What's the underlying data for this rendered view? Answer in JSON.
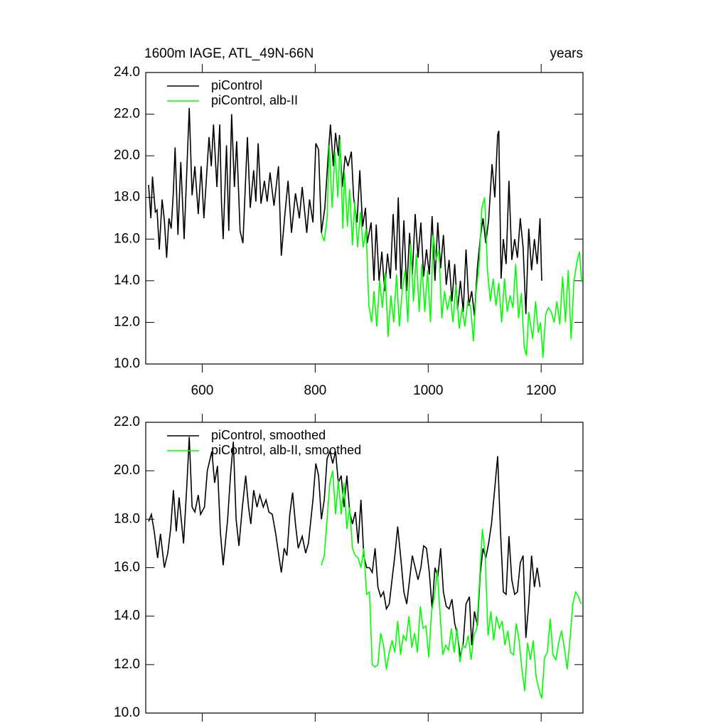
{
  "chart_data": [
    {
      "type": "line",
      "title": "1600m IAGE, ATL_49N-66N",
      "right_string": "years",
      "xlim": [
        500,
        1274
      ],
      "xticks": [
        600,
        800,
        1000,
        1200
      ],
      "ylim": [
        10,
        24
      ],
      "yticks": [
        {
          "value": 10,
          "label": "10.0"
        },
        {
          "value": 12,
          "label": "12.0"
        },
        {
          "value": 14,
          "label": "14.0"
        },
        {
          "value": 16,
          "label": "16.0"
        },
        {
          "value": 18,
          "label": "18.0"
        },
        {
          "value": 20,
          "label": "20.0"
        },
        {
          "value": 22,
          "label": "22.0"
        },
        {
          "value": 24,
          "label": "24.0"
        }
      ],
      "legend": "top-left",
      "series": [
        {
          "name": "piControl",
          "color": "#000000",
          "x": [
            505,
            509,
            512,
            517,
            520,
            524,
            529,
            533,
            537,
            541,
            545,
            549,
            552,
            557,
            562,
            568,
            577,
            582,
            587,
            593,
            598,
            603,
            612,
            616,
            620,
            626,
            631,
            634,
            637,
            643,
            647,
            652,
            657,
            661,
            667,
            672,
            680,
            685,
            691,
            695,
            699,
            704,
            710,
            715,
            720,
            727,
            735,
            740,
            746,
            752,
            758,
            765,
            772,
            777,
            785,
            790,
            796,
            801,
            806,
            811,
            817,
            823,
            827,
            832,
            836,
            841,
            843,
            848,
            853,
            858,
            864,
            868,
            874,
            879,
            884,
            889,
            892,
            899,
            904,
            908,
            913,
            918,
            923,
            928,
            933,
            938,
            943,
            947,
            952,
            957,
            962,
            967,
            972,
            977,
            982,
            987,
            992,
            997,
            1002,
            1007,
            1012,
            1017,
            1022,
            1027,
            1032,
            1037,
            1042,
            1047,
            1052,
            1057,
            1062,
            1067,
            1072,
            1077,
            1082,
            1087,
            1092,
            1097,
            1102,
            1107,
            1113,
            1118,
            1123,
            1125,
            1129,
            1133,
            1138,
            1143,
            1148,
            1153,
            1158,
            1163,
            1168,
            1173,
            1178,
            1183,
            1188,
            1193,
            1198,
            1201
          ],
          "values": [
            18.6,
            17.0,
            19.0,
            17.3,
            17.4,
            15.5,
            17.9,
            16.9,
            15.1,
            17.0,
            16.5,
            18.3,
            20.4,
            16.2,
            19.7,
            16.0,
            22.3,
            18.1,
            19.5,
            17.2,
            19.5,
            17.0,
            20.9,
            19.5,
            21.5,
            18.5,
            21.5,
            17.8,
            16.0,
            20.5,
            16.4,
            22.0,
            18.5,
            20.7,
            16.4,
            15.8,
            20.9,
            17.5,
            19.3,
            17.8,
            20.6,
            17.7,
            18.8,
            17.8,
            19.2,
            17.6,
            19.5,
            15.2,
            17.1,
            18.8,
            16.3,
            18.2,
            17.0,
            18.5,
            16.3,
            17.9,
            16.8,
            20.6,
            20.3,
            16.3,
            17.5,
            20.0,
            21.5,
            19.5,
            21.1,
            20.0,
            21.0,
            18.5,
            20.0,
            19.5,
            20.2,
            18.0,
            16.8,
            19.3,
            16.6,
            17.5,
            15.8,
            16.8,
            14.0,
            16.7,
            14.0,
            15.4,
            13.5,
            15.3,
            14.1,
            17.2,
            14.5,
            18.0,
            13.6,
            16.9,
            13.5,
            16.3,
            14.3,
            17.2,
            15.1,
            16.8,
            14.2,
            15.5,
            14.3,
            17.1,
            14.0,
            16.8,
            14.6,
            16.2,
            13.8,
            15.0,
            13.0,
            14.8,
            12.6,
            14.0,
            12.5,
            15.5,
            12.8,
            13.5,
            12.3,
            14.6,
            16.0,
            17.0,
            15.8,
            16.9,
            19.6,
            18.0,
            21.0,
            21.2,
            14.1,
            16.0,
            14.8,
            18.8,
            15.0,
            16.0,
            15.1,
            17.0,
            15.6,
            12.4,
            16.5,
            14.5,
            16.0,
            14.8,
            17.0,
            14.0
          ]
        },
        {
          "name": "piControl, alb-II",
          "color": "#00ff00",
          "x": [
            811,
            816,
            821,
            825,
            830,
            835,
            840,
            844,
            849,
            852,
            857,
            861,
            866,
            870,
            875,
            880,
            885,
            890,
            895,
            900,
            904,
            909,
            914,
            919,
            924,
            929,
            934,
            939,
            944,
            949,
            954,
            959,
            964,
            969,
            974,
            979,
            984,
            989,
            994,
            999,
            1004,
            1009,
            1014,
            1019,
            1024,
            1029,
            1034,
            1039,
            1044,
            1049,
            1055,
            1060,
            1065,
            1070,
            1075,
            1080,
            1085,
            1090,
            1095,
            1100,
            1105,
            1110,
            1115,
            1120,
            1125,
            1130,
            1135,
            1140,
            1145,
            1150,
            1155,
            1160,
            1165,
            1170,
            1174,
            1178,
            1185,
            1190,
            1195,
            1199,
            1203,
            1208,
            1213,
            1218,
            1223,
            1228,
            1233,
            1238,
            1243,
            1248,
            1253,
            1258,
            1264,
            1268,
            1271,
            1273
          ],
          "values": [
            16.3,
            15.9,
            17.0,
            20.5,
            17.5,
            20.2,
            18.0,
            20.8,
            16.5,
            19.2,
            16.6,
            18.4,
            15.7,
            17.8,
            15.6,
            17.3,
            15.6,
            16.5,
            12.8,
            12.0,
            13.5,
            11.8,
            14.0,
            12.7,
            14.4,
            11.3,
            13.3,
            12.0,
            14.3,
            11.8,
            13.5,
            14.5,
            12.0,
            15.8,
            13.0,
            15.3,
            12.5,
            14.8,
            12.5,
            14.5,
            12.0,
            16.2,
            15.0,
            15.5,
            12.2,
            13.5,
            12.6,
            13.3,
            12.0,
            13.8,
            11.7,
            12.7,
            11.8,
            13.0,
            12.8,
            11.1,
            13.5,
            14.7,
            17.5,
            18.0,
            14.5,
            13.0,
            14.1,
            12.8,
            13.9,
            12.0,
            14.1,
            12.5,
            13.3,
            12.7,
            14.8,
            12.2,
            13.4,
            10.8,
            10.4,
            12.5,
            11.2,
            13.0,
            11.5,
            12.0,
            10.3,
            12.4,
            12.7,
            12.5,
            12.0,
            13.0,
            11.9,
            14.2,
            12.0,
            14.5,
            11.2,
            14.0,
            15.0,
            15.4,
            14.2,
            13.9
          ]
        }
      ]
    },
    {
      "type": "line",
      "xlim": [
        500,
        1274
      ],
      "ylim": [
        10,
        22
      ],
      "yticks": [
        {
          "value": 10,
          "label": "10.0"
        },
        {
          "value": 12,
          "label": "12.0"
        },
        {
          "value": 14,
          "label": "14.0"
        },
        {
          "value": 16,
          "label": "16.0"
        },
        {
          "value": 18,
          "label": "18.0"
        },
        {
          "value": 20,
          "label": "20.0"
        },
        {
          "value": 22,
          "label": "22.0"
        }
      ],
      "legend": "top-left",
      "series": [
        {
          "name": "piControl, smoothed",
          "color": "#000000",
          "x": [
            505,
            510,
            515,
            521,
            526,
            533,
            539,
            544,
            549,
            554,
            559,
            567,
            573,
            577,
            582,
            587,
            593,
            597,
            604,
            609,
            617,
            622,
            627,
            632,
            637,
            645,
            650,
            655,
            660,
            665,
            671,
            677,
            682,
            686,
            691,
            697,
            702,
            708,
            713,
            718,
            724,
            730,
            735,
            740,
            745,
            750,
            755,
            760,
            765,
            770,
            777,
            783,
            788,
            796,
            801,
            806,
            811,
            816,
            821,
            826,
            831,
            836,
            841,
            846,
            851,
            856,
            861,
            866,
            871,
            876,
            881,
            886,
            891,
            896,
            901,
            906,
            911,
            916,
            921,
            926,
            931,
            936,
            941,
            946,
            951,
            957,
            962,
            967,
            972,
            977,
            982,
            987,
            992,
            997,
            1002,
            1007,
            1012,
            1017,
            1022,
            1027,
            1032,
            1037,
            1042,
            1047,
            1052,
            1057,
            1062,
            1067,
            1073,
            1077,
            1082,
            1087,
            1092,
            1097,
            1102,
            1107,
            1112,
            1118,
            1123,
            1128,
            1133,
            1138,
            1143,
            1148,
            1153,
            1158,
            1163,
            1168,
            1173,
            1178,
            1183,
            1188,
            1193,
            1198
          ],
          "values": [
            17.9,
            18.2,
            17.5,
            16.4,
            17.4,
            16.0,
            16.6,
            17.6,
            19.2,
            17.5,
            18.9,
            17.0,
            19.5,
            21.4,
            18.5,
            18.3,
            19.0,
            18.2,
            18.5,
            20.0,
            20.8,
            19.5,
            20.2,
            17.5,
            16.1,
            18.0,
            19.8,
            21.2,
            18.0,
            16.9,
            18.5,
            19.8,
            18.5,
            17.8,
            19.2,
            18.5,
            19.0,
            18.5,
            18.8,
            18.3,
            18.2,
            17.4,
            16.6,
            15.8,
            16.8,
            16.5,
            18.2,
            19.1,
            17.8,
            16.8,
            17.3,
            16.6,
            17.0,
            18.8,
            20.3,
            19.8,
            18.0,
            18.8,
            20.5,
            20.8,
            20.3,
            20.8,
            19.5,
            19.8,
            18.5,
            19.8,
            18.3,
            17.8,
            18.3,
            17.0,
            18.8,
            16.5,
            16.0,
            16.0,
            15.8,
            16.8,
            15.2,
            14.8,
            15.0,
            14.3,
            14.5,
            15.5,
            16.5,
            17.7,
            16.5,
            15.0,
            14.5,
            15.5,
            16.5,
            16.0,
            15.5,
            16.0,
            16.9,
            16.8,
            15.8,
            14.3,
            16.0,
            15.6,
            16.8,
            15.0,
            14.4,
            14.3,
            14.7,
            13.7,
            13.2,
            12.3,
            12.9,
            14.5,
            14.8,
            12.8,
            14.2,
            13.6,
            15.7,
            16.8,
            16.4,
            17.0,
            17.8,
            19.3,
            20.6,
            17.5,
            15.0,
            14.9,
            17.3,
            15.5,
            14.9,
            15.0,
            16.2,
            16.5,
            13.1,
            14.5,
            16.5,
            15.2,
            16.0,
            15.2
          ]
        },
        {
          "name": "piControl, alb-II, smoothed",
          "color": "#00ff00",
          "x": [
            811,
            816,
            821,
            826,
            831,
            836,
            841,
            846,
            851,
            856,
            861,
            866,
            871,
            876,
            881,
            886,
            891,
            896,
            901,
            906,
            911,
            916,
            921,
            926,
            931,
            936,
            941,
            946,
            951,
            956,
            961,
            966,
            971,
            976,
            981,
            986,
            991,
            996,
            1001,
            1006,
            1011,
            1016,
            1021,
            1026,
            1031,
            1036,
            1041,
            1046,
            1051,
            1056,
            1061,
            1066,
            1071,
            1076,
            1081,
            1086,
            1091,
            1096,
            1101,
            1106,
            1111,
            1116,
            1121,
            1126,
            1131,
            1136,
            1141,
            1146,
            1151,
            1156,
            1161,
            1166,
            1171,
            1176,
            1181,
            1186,
            1191,
            1196,
            1201,
            1206,
            1211,
            1216,
            1221,
            1226,
            1231,
            1236,
            1241,
            1246,
            1251,
            1256,
            1261,
            1266,
            1271
          ],
          "values": [
            16.1,
            16.5,
            18.0,
            19.5,
            20.0,
            18.2,
            19.6,
            18.2,
            19.5,
            17.6,
            18.5,
            16.8,
            16.5,
            16.4,
            16.0,
            16.8,
            14.9,
            15.0,
            12.0,
            11.9,
            12.0,
            13.3,
            12.8,
            11.8,
            12.5,
            13.0,
            12.5,
            13.8,
            12.4,
            13.2,
            13.0,
            14.0,
            12.7,
            13.3,
            12.5,
            14.4,
            13.5,
            13.6,
            12.3,
            14.2,
            14.8,
            15.9,
            14.1,
            12.4,
            12.8,
            12.6,
            13.5,
            12.5,
            13.5,
            12.1,
            12.8,
            12.7,
            13.2,
            12.2,
            13.2,
            13.5,
            15.5,
            17.6,
            16.5,
            13.2,
            14.2,
            13.0,
            14.0,
            13.5,
            13.8,
            12.8,
            13.4,
            12.5,
            12.4,
            13.7,
            13.0,
            11.8,
            10.9,
            12.9,
            12.2,
            13.0,
            11.5,
            11.0,
            10.6,
            12.3,
            12.5,
            13.9,
            12.4,
            12.2,
            12.9,
            13.4,
            12.7,
            11.8,
            13.0,
            14.5,
            15.0,
            14.8,
            14.5
          ]
        }
      ]
    }
  ]
}
